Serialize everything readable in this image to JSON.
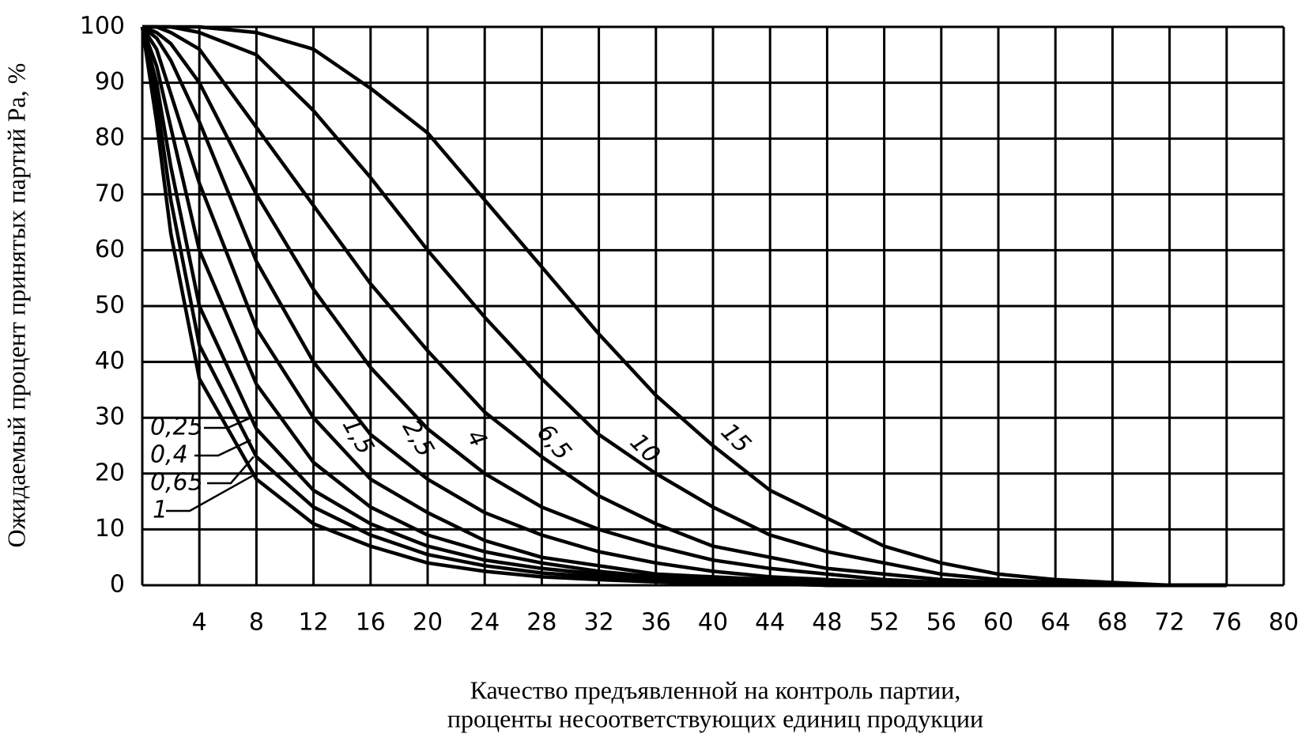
{
  "chart_data": {
    "type": "line",
    "x_label_lines": [
      "Качество предъявленной на контроль партии,",
      "проценты несоответствующих единиц продукции"
    ],
    "y_label": "Ожидаемый процент принятых партий Pa, %",
    "color": "#000000",
    "grid": true,
    "xlim": [
      0,
      80
    ],
    "ylim": [
      0,
      100
    ],
    "xticks": [
      4,
      8,
      12,
      16,
      20,
      24,
      28,
      32,
      36,
      40,
      44,
      48,
      52,
      56,
      60,
      64,
      68,
      72,
      76,
      80
    ],
    "yticks": [
      0,
      10,
      20,
      30,
      40,
      50,
      60,
      70,
      80,
      90,
      100
    ],
    "x": [
      0,
      1,
      2,
      4,
      8,
      12,
      16,
      20,
      24,
      28,
      32,
      36,
      40,
      44,
      48,
      52,
      56,
      60,
      64,
      68,
      72,
      76
    ],
    "series": [
      {
        "name": "0,25",
        "values": [
          100,
          83,
          63,
          37,
          19,
          11,
          7,
          4,
          2.5,
          1.5,
          1,
          0.6,
          0.3,
          0.2,
          0,
          0,
          0,
          0,
          0,
          0,
          0,
          0
        ]
      },
      {
        "name": "0,4",
        "values": [
          100,
          87,
          69,
          43,
          23,
          14,
          9,
          5.5,
          3.5,
          2.2,
          1.5,
          1,
          0.5,
          0.3,
          0,
          0,
          0,
          0,
          0,
          0,
          0,
          0
        ]
      },
      {
        "name": "0,65",
        "values": [
          100,
          90,
          75,
          50,
          28,
          17,
          11,
          7,
          4.5,
          3,
          2,
          1.2,
          0.8,
          0.5,
          0,
          0,
          0,
          0,
          0,
          0,
          0,
          0
        ]
      },
      {
        "name": "1",
        "values": [
          100,
          93,
          82,
          60,
          36,
          22,
          14,
          9,
          6,
          4,
          2.5,
          1.5,
          1,
          0.5,
          0,
          0,
          0,
          0,
          0,
          0,
          0,
          0
        ]
      },
      {
        "name": "1,5",
        "values": [
          100,
          96,
          88,
          72,
          46,
          30,
          19,
          13,
          8,
          5,
          3.5,
          2,
          1.5,
          1,
          0.5,
          0,
          0,
          0,
          0,
          0,
          0,
          0
        ]
      },
      {
        "name": "2,5",
        "values": [
          100,
          98,
          94,
          83,
          58,
          40,
          27,
          19,
          13,
          9,
          6,
          4,
          2.5,
          1.5,
          1,
          0.5,
          0,
          0,
          0,
          0,
          0,
          0
        ]
      },
      {
        "name": "4",
        "values": [
          100,
          99,
          97,
          90,
          70,
          53,
          39,
          28,
          20,
          14,
          10,
          7,
          4.5,
          3,
          2,
          1,
          0.5,
          0,
          0,
          0,
          0,
          0
        ]
      },
      {
        "name": "6,5",
        "values": [
          100,
          100,
          99,
          96,
          82,
          68,
          54,
          42,
          31,
          23,
          16,
          11,
          7,
          5,
          3,
          2,
          1,
          0.5,
          0,
          0,
          0,
          0
        ]
      },
      {
        "name": "10",
        "values": [
          100,
          100,
          100,
          99,
          95,
          85,
          73,
          60,
          48,
          37,
          27,
          20,
          14,
          9,
          6,
          4,
          2,
          1,
          0.5,
          0,
          0,
          0
        ]
      },
      {
        "name": "15",
        "values": [
          100,
          100,
          100,
          100,
          99,
          96,
          89,
          81,
          69,
          57,
          45,
          34,
          25,
          17,
          12,
          7,
          4,
          2,
          1,
          0.5,
          0,
          0
        ]
      }
    ]
  }
}
